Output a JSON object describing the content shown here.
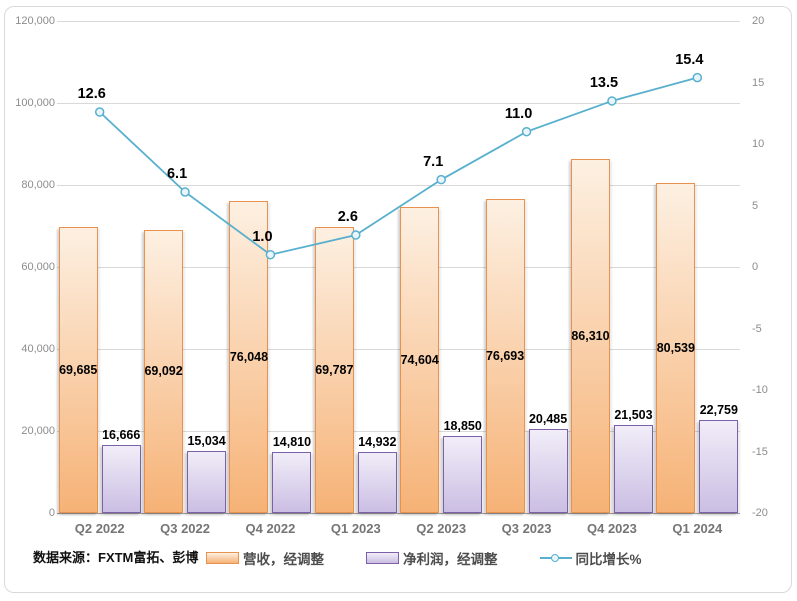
{
  "source_note": "数据来源：FXTM富拓、彭博",
  "page": {
    "background": "#FFFFFF",
    "frame_border_color": "#D9D9D9",
    "gridline_color": "#D9D9D9",
    "axis_line_color": "#A6A6A6",
    "axis_text_color": "#8C8C8C",
    "category_text_color": "#757575"
  },
  "chart_data": {
    "type": "combo",
    "title": "",
    "grid": true,
    "legend_position": "bottom",
    "categories": [
      "Q2 2022",
      "Q3 2022",
      "Q4 2022",
      "Q1 2023",
      "Q2 2023",
      "Q3 2023",
      "Q4 2023",
      "Q1 2024"
    ],
    "series": [
      {
        "name": "营收，经调整",
        "type": "bar",
        "axis": "left",
        "values": [
          69685,
          69092,
          76048,
          69787,
          74604,
          76693,
          86310,
          80539
        ],
        "labels": [
          "69,685",
          "69,092",
          "76,048",
          "69,787",
          "74,604",
          "76,693",
          "86,310",
          "80,539"
        ],
        "label_position": "center",
        "fill_top": "#FDF0E2",
        "fill_bottom": "#F6B276",
        "border": "#E9914E"
      },
      {
        "name": "净利润，经调整",
        "type": "bar",
        "axis": "left",
        "values": [
          16666,
          15034,
          14810,
          14932,
          18850,
          20485,
          21503,
          22759
        ],
        "labels": [
          "16,666",
          "15,034",
          "14,810",
          "14,932",
          "18,850",
          "20,485",
          "21,503",
          "22,759"
        ],
        "label_position": "outside-end",
        "fill_top": "#F1EDF8",
        "fill_bottom": "#CBBEE3",
        "border": "#7C61A9"
      },
      {
        "name": "同比增长%",
        "type": "line",
        "axis": "right",
        "values": [
          12.6,
          6.1,
          1.0,
          2.6,
          7.1,
          11.0,
          13.5,
          15.4
        ],
        "labels": [
          "12.6",
          "6.1",
          "1.0",
          "2.6",
          "7.1",
          "11.0",
          "13.5",
          "15.4"
        ],
        "color": "#58B0CE",
        "marker_fill": "#E9F5FA"
      }
    ],
    "left_axis": {
      "min": 0,
      "max": 120000,
      "step": 20000,
      "tick_labels": [
        "0",
        "20,000",
        "40,000",
        "60,000",
        "80,000",
        "100,000",
        "120,000"
      ]
    },
    "right_axis": {
      "min": -20,
      "max": 20,
      "step": 5,
      "tick_labels": [
        "-20",
        "-15",
        "-10",
        "-5",
        "0",
        "5",
        "10",
        "15",
        "20"
      ]
    }
  }
}
